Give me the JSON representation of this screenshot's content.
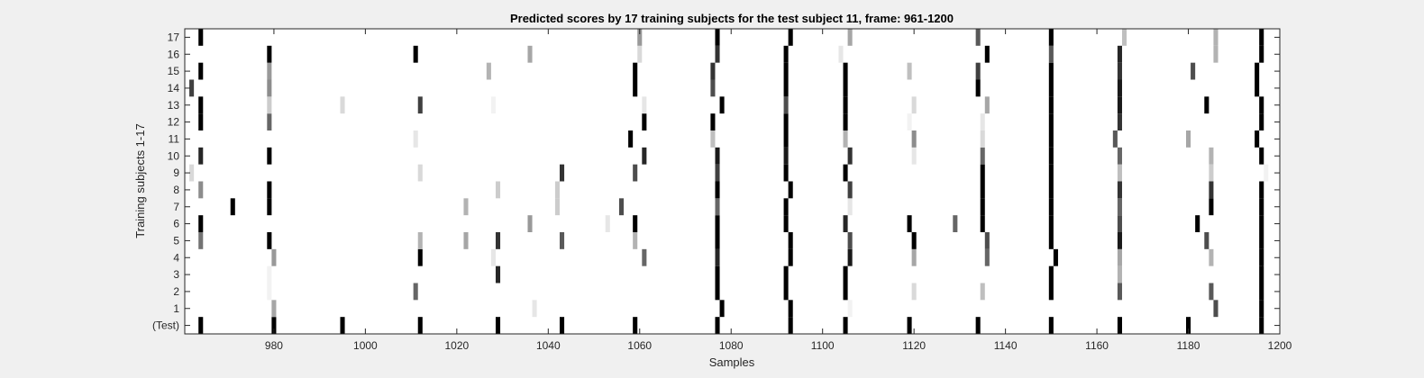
{
  "chart_data": {
    "type": "heatmap",
    "title": "Predicted scores by 17 training subjects for the test subject 11, frame: 961-1200",
    "xlabel": "Samples",
    "ylabel": "Training subjects 1-17",
    "xlim": [
      961,
      1200
    ],
    "xticks": [
      980,
      1000,
      1020,
      1040,
      1060,
      1080,
      1100,
      1120,
      1140,
      1160,
      1180,
      1200
    ],
    "rows": [
      "(Test)",
      "1",
      "2",
      "3",
      "4",
      "5",
      "6",
      "7",
      "8",
      "9",
      "10",
      "11",
      "12",
      "13",
      "14",
      "15",
      "16",
      "17"
    ],
    "colormap": "gray",
    "value_range": [
      0,
      1
    ],
    "cells": [
      {
        "row": "(Test)",
        "marks": [
          [
            964,
            1
          ],
          [
            980,
            1
          ],
          [
            995,
            1
          ],
          [
            1012,
            1
          ],
          [
            1029,
            1
          ],
          [
            1043,
            1
          ],
          [
            1059,
            1
          ],
          [
            1077,
            1
          ],
          [
            1093,
            1
          ],
          [
            1105,
            1
          ],
          [
            1119,
            1
          ],
          [
            1134,
            1
          ],
          [
            1150,
            1
          ],
          [
            1165,
            1
          ],
          [
            1180,
            1
          ],
          [
            1196,
            1
          ]
        ]
      },
      {
        "row": "1",
        "marks": [
          [
            980,
            0.35
          ],
          [
            1037,
            0.1
          ],
          [
            1078,
            1
          ],
          [
            1093,
            1
          ],
          [
            1106,
            0.05
          ],
          [
            1186,
            0.7
          ],
          [
            1196,
            1
          ]
        ]
      },
      {
        "row": "2",
        "marks": [
          [
            979,
            0.05
          ],
          [
            1011,
            0.6
          ],
          [
            1077,
            1
          ],
          [
            1092,
            1
          ],
          [
            1105,
            1
          ],
          [
            1120,
            0.15
          ],
          [
            1135,
            0.25
          ],
          [
            1150,
            1
          ],
          [
            1165,
            0.65
          ],
          [
            1185,
            0.65
          ],
          [
            1196,
            1
          ]
        ]
      },
      {
        "row": "3",
        "marks": [
          [
            979,
            0.05
          ],
          [
            1029,
            0.85
          ],
          [
            1077,
            1
          ],
          [
            1092,
            1
          ],
          [
            1105,
            1
          ],
          [
            1150,
            1
          ],
          [
            1165,
            0.3
          ],
          [
            1196,
            1
          ]
        ]
      },
      {
        "row": "4",
        "marks": [
          [
            980,
            0.4
          ],
          [
            1012,
            1
          ],
          [
            1028,
            0.1
          ],
          [
            1061,
            0.6
          ],
          [
            1077,
            0.85
          ],
          [
            1093,
            1
          ],
          [
            1106,
            0.9
          ],
          [
            1120,
            0.35
          ],
          [
            1136,
            0.6
          ],
          [
            1151,
            1
          ],
          [
            1165,
            0.35
          ],
          [
            1185,
            0.3
          ],
          [
            1196,
            1
          ]
        ]
      },
      {
        "row": "5",
        "marks": [
          [
            964,
            0.55
          ],
          [
            979,
            1
          ],
          [
            1012,
            0.3
          ],
          [
            1022,
            0.35
          ],
          [
            1029,
            0.8
          ],
          [
            1043,
            0.65
          ],
          [
            1059,
            0.3
          ],
          [
            1077,
            1
          ],
          [
            1093,
            1
          ],
          [
            1106,
            0.7
          ],
          [
            1120,
            1
          ],
          [
            1136,
            0.7
          ],
          [
            1150,
            1
          ],
          [
            1165,
            0.9
          ],
          [
            1184,
            0.7
          ],
          [
            1196,
            1
          ]
        ]
      },
      {
        "row": "6",
        "marks": [
          [
            964,
            1
          ],
          [
            1036,
            0.4
          ],
          [
            1053,
            0.1
          ],
          [
            1059,
            1
          ],
          [
            1077,
            1
          ],
          [
            1092,
            1
          ],
          [
            1105,
            0.85
          ],
          [
            1119,
            1
          ],
          [
            1129,
            0.6
          ],
          [
            1135,
            1
          ],
          [
            1150,
            1
          ],
          [
            1165,
            0.7
          ],
          [
            1182,
            1
          ],
          [
            1196,
            1
          ]
        ]
      },
      {
        "row": "7",
        "marks": [
          [
            971,
            1
          ],
          [
            979,
            1
          ],
          [
            1022,
            0.3
          ],
          [
            1042,
            0.2
          ],
          [
            1056,
            0.7
          ],
          [
            1077,
            0.6
          ],
          [
            1092,
            1
          ],
          [
            1106,
            0.1
          ],
          [
            1135,
            1
          ],
          [
            1150,
            1
          ],
          [
            1165,
            0.6
          ],
          [
            1185,
            1
          ],
          [
            1196,
            1
          ]
        ]
      },
      {
        "row": "8",
        "marks": [
          [
            964,
            0.45
          ],
          [
            979,
            1
          ],
          [
            1029,
            0.2
          ],
          [
            1042,
            0.2
          ],
          [
            1077,
            1
          ],
          [
            1093,
            1
          ],
          [
            1106,
            0.75
          ],
          [
            1135,
            1
          ],
          [
            1150,
            1
          ],
          [
            1165,
            0.8
          ],
          [
            1185,
            0.8
          ],
          [
            1196,
            1
          ]
        ]
      },
      {
        "row": "9",
        "marks": [
          [
            962,
            0.15
          ],
          [
            1012,
            0.15
          ],
          [
            1043,
            0.8
          ],
          [
            1059,
            0.7
          ],
          [
            1077,
            0.75
          ],
          [
            1092,
            1
          ],
          [
            1105,
            1
          ],
          [
            1135,
            1
          ],
          [
            1150,
            1
          ],
          [
            1165,
            0.25
          ],
          [
            1185,
            0.2
          ],
          [
            1197,
            0.05
          ]
        ]
      },
      {
        "row": "10",
        "marks": [
          [
            964,
            0.85
          ],
          [
            979,
            1
          ],
          [
            1061,
            0.85
          ],
          [
            1077,
            0.9
          ],
          [
            1092,
            0.9
          ],
          [
            1106,
            0.8
          ],
          [
            1120,
            0.1
          ],
          [
            1135,
            0.6
          ],
          [
            1150,
            1
          ],
          [
            1165,
            0.6
          ],
          [
            1185,
            0.3
          ],
          [
            1196,
            1
          ]
        ]
      },
      {
        "row": "11",
        "marks": [
          [
            1011,
            0.1
          ],
          [
            1058,
            1
          ],
          [
            1076,
            0.25
          ],
          [
            1092,
            1
          ],
          [
            1105,
            0.3
          ],
          [
            1120,
            0.45
          ],
          [
            1135,
            0.15
          ],
          [
            1150,
            1
          ],
          [
            1164,
            0.65
          ],
          [
            1180,
            0.35
          ],
          [
            1195,
            1
          ]
        ]
      },
      {
        "row": "12",
        "marks": [
          [
            964,
            1
          ],
          [
            979,
            0.6
          ],
          [
            1061,
            1
          ],
          [
            1076,
            1
          ],
          [
            1092,
            1
          ],
          [
            1105,
            1
          ],
          [
            1119,
            0.05
          ],
          [
            1135,
            0.1
          ],
          [
            1150,
            1
          ],
          [
            1165,
            0.8
          ],
          [
            1196,
            1
          ]
        ]
      },
      {
        "row": "13",
        "marks": [
          [
            964,
            1
          ],
          [
            979,
            0.2
          ],
          [
            995,
            0.15
          ],
          [
            1012,
            0.75
          ],
          [
            1028,
            0.05
          ],
          [
            1061,
            0.1
          ],
          [
            1078,
            1
          ],
          [
            1092,
            0.7
          ],
          [
            1105,
            1
          ],
          [
            1120,
            0.15
          ],
          [
            1136,
            0.35
          ],
          [
            1150,
            1
          ],
          [
            1165,
            0.9
          ],
          [
            1184,
            1
          ],
          [
            1196,
            1
          ]
        ]
      },
      {
        "row": "14",
        "marks": [
          [
            962,
            0.75
          ],
          [
            979,
            0.45
          ],
          [
            1059,
            1
          ],
          [
            1076,
            0.7
          ],
          [
            1092,
            1
          ],
          [
            1105,
            1
          ],
          [
            1134,
            1
          ],
          [
            1150,
            1
          ],
          [
            1165,
            0.9
          ],
          [
            1195,
            1
          ]
        ]
      },
      {
        "row": "15",
        "marks": [
          [
            964,
            1
          ],
          [
            979,
            0.4
          ],
          [
            1027,
            0.3
          ],
          [
            1059,
            1
          ],
          [
            1076,
            0.8
          ],
          [
            1092,
            1
          ],
          [
            1105,
            1
          ],
          [
            1119,
            0.25
          ],
          [
            1134,
            0.75
          ],
          [
            1150,
            1
          ],
          [
            1165,
            0.8
          ],
          [
            1181,
            0.7
          ],
          [
            1195,
            1
          ]
        ]
      },
      {
        "row": "16",
        "marks": [
          [
            979,
            1
          ],
          [
            1011,
            1
          ],
          [
            1036,
            0.35
          ],
          [
            1060,
            0.15
          ],
          [
            1077,
            0.8
          ],
          [
            1092,
            1
          ],
          [
            1104,
            0.1
          ],
          [
            1136,
            1
          ],
          [
            1150,
            0.65
          ],
          [
            1165,
            0.85
          ],
          [
            1186,
            0.3
          ],
          [
            1196,
            1
          ]
        ]
      },
      {
        "row": "17",
        "marks": [
          [
            964,
            1
          ],
          [
            1060,
            0.4
          ],
          [
            1077,
            1
          ],
          [
            1093,
            1
          ],
          [
            1106,
            0.35
          ],
          [
            1134,
            0.65
          ],
          [
            1150,
            1
          ],
          [
            1166,
            0.25
          ],
          [
            1186,
            0.3
          ],
          [
            1196,
            1
          ]
        ]
      }
    ]
  }
}
